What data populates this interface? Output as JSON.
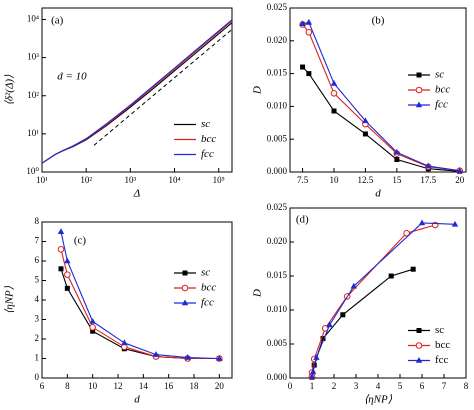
{
  "chart_data": [
    {
      "type": "line",
      "panel_label": "(a)",
      "note": "d = 10",
      "x_label": "Δ",
      "y_label": "⟨δ²(Δ)⟩",
      "xlog": true,
      "ylog": true,
      "xlim": [
        10,
        200000
      ],
      "ylim": [
        1,
        20000
      ],
      "xticks": [
        {
          "value": 10,
          "label": "10¹"
        },
        {
          "value": 100,
          "label": "10²"
        },
        {
          "value": 1000,
          "label": "10³"
        },
        {
          "value": 10000,
          "label": "10⁴"
        },
        {
          "value": 100000,
          "label": "10⁵"
        }
      ],
      "yticks": [
        {
          "value": 1,
          "label": "10⁰"
        },
        {
          "value": 10,
          "label": "10¹"
        },
        {
          "value": 100,
          "label": "10²"
        },
        {
          "value": 1000,
          "label": "10³"
        },
        {
          "value": 10000,
          "label": "10⁴"
        }
      ],
      "legend": "lower right",
      "x": [
        10,
        20,
        30,
        50,
        100,
        300,
        1000,
        3000,
        10000,
        30000,
        100000,
        200000
      ],
      "series": [
        {
          "name": "sc",
          "color": "#000000",
          "values": [
            1.7,
            2.9,
            3.6,
            4.6,
            7,
            17,
            50,
            140,
            450,
            1300,
            4200,
            8200
          ]
        },
        {
          "name": "bcc",
          "color": "#e0201b",
          "values": [
            1.7,
            2.9,
            3.6,
            4.7,
            7.3,
            18,
            54,
            155,
            500,
            1450,
            4700,
            9200
          ]
        },
        {
          "name": "fcc",
          "color": "#1c2bd6",
          "values": [
            1.7,
            2.9,
            3.7,
            4.8,
            7.5,
            19,
            57,
            165,
            530,
            1550,
            5000,
            9800
          ]
        }
      ],
      "reference_line": {
        "x": [
          150,
          200000
        ],
        "values": [
          5,
          5500
        ]
      }
    },
    {
      "type": "line",
      "panel_label": "(b)",
      "x_label": "d",
      "y_label": "D",
      "xlim": [
        6.5,
        20.5
      ],
      "ylim": [
        0,
        0.025
      ],
      "xticks": [
        7.5,
        10,
        12.5,
        15,
        17.5,
        20
      ],
      "yticks": [
        {
          "value": 0,
          "label": "0.000"
        },
        {
          "value": 0.005,
          "label": "0.005"
        },
        {
          "value": 0.01,
          "label": "0.010"
        },
        {
          "value": 0.015,
          "label": "0.015"
        },
        {
          "value": 0.02,
          "label": "0.020"
        },
        {
          "value": 0.025,
          "label": "0.025"
        }
      ],
      "legend": "center right",
      "x": [
        7.5,
        8,
        10,
        12.5,
        15,
        17.5,
        20
      ],
      "series": [
        {
          "name": "sc",
          "color": "#000000",
          "marker": "square",
          "values": [
            0.016,
            0.015,
            0.0093,
            0.0058,
            0.0019,
            0.0005,
            0.0001
          ]
        },
        {
          "name": "bcc",
          "color": "#e0201b",
          "marker": "circle-open",
          "values": [
            0.0225,
            0.0213,
            0.012,
            0.0073,
            0.0028,
            0.0008,
            0.0002
          ]
        },
        {
          "name": "fcc",
          "color": "#1c2bd6",
          "marker": "triangle",
          "values": [
            0.0226,
            0.0228,
            0.0135,
            0.0078,
            0.003,
            0.0009,
            0.0002
          ]
        }
      ]
    },
    {
      "type": "line",
      "panel_label": "(c)",
      "x_label": "d",
      "y_label": "⟨ηNP⟩",
      "xlim": [
        6,
        21
      ],
      "ylim": [
        0,
        8
      ],
      "xticks": [
        6,
        8,
        10,
        12,
        14,
        16,
        18,
        20
      ],
      "yticks": [
        0,
        1,
        2,
        3,
        4,
        5,
        6,
        7,
        8
      ],
      "legend": "center right",
      "x": [
        7.5,
        8,
        10,
        12.5,
        15,
        17.5,
        20
      ],
      "series": [
        {
          "name": "sc",
          "color": "#000000",
          "marker": "square",
          "values": [
            5.6,
            4.6,
            2.4,
            1.5,
            1.1,
            1.0,
            1.0
          ]
        },
        {
          "name": "bcc",
          "color": "#e0201b",
          "marker": "circle-open",
          "values": [
            6.6,
            5.3,
            2.6,
            1.6,
            1.1,
            1.0,
            1.0
          ]
        },
        {
          "name": "fcc",
          "color": "#1c2bd6",
          "marker": "triangle",
          "values": [
            7.5,
            6.0,
            2.9,
            1.8,
            1.2,
            1.05,
            1.0
          ]
        }
      ]
    },
    {
      "type": "line",
      "panel_label": "(d)",
      "x_label": "⟨ηNP⟩",
      "y_label": "D",
      "xlim": [
        0,
        8
      ],
      "ylim": [
        0,
        0.025
      ],
      "xticks": [
        0,
        1,
        2,
        3,
        4,
        5,
        6,
        7,
        8
      ],
      "yticks": [
        {
          "value": 0,
          "label": "0.000"
        },
        {
          "value": 0.005,
          "label": "0.005"
        },
        {
          "value": 0.01,
          "label": "0.010"
        },
        {
          "value": 0.015,
          "label": "0.015"
        },
        {
          "value": 0.02,
          "label": "0.020"
        },
        {
          "value": 0.025,
          "label": "0.025"
        }
      ],
      "legend": "lower right",
      "series": [
        {
          "name": "sc",
          "color": "#000000",
          "marker": "square",
          "x": [
            1.0,
            1.0,
            1.1,
            1.5,
            2.4,
            4.6,
            5.6
          ],
          "values": [
            0.0001,
            0.0005,
            0.0019,
            0.0058,
            0.0093,
            0.015,
            0.016
          ]
        },
        {
          "name": "bcc",
          "color": "#e0201b",
          "marker": "circle-open",
          "x": [
            1.0,
            1.0,
            1.1,
            1.6,
            2.6,
            5.3,
            6.6
          ],
          "values": [
            0.0002,
            0.0008,
            0.0028,
            0.0073,
            0.012,
            0.0213,
            0.0225
          ]
        },
        {
          "name": "fcc",
          "color": "#1c2bd6",
          "marker": "triangle",
          "x": [
            1.0,
            1.05,
            1.2,
            1.8,
            2.9,
            6.0,
            7.5
          ],
          "values": [
            0.0002,
            0.0009,
            0.003,
            0.0078,
            0.0135,
            0.0228,
            0.0226
          ]
        }
      ]
    }
  ]
}
